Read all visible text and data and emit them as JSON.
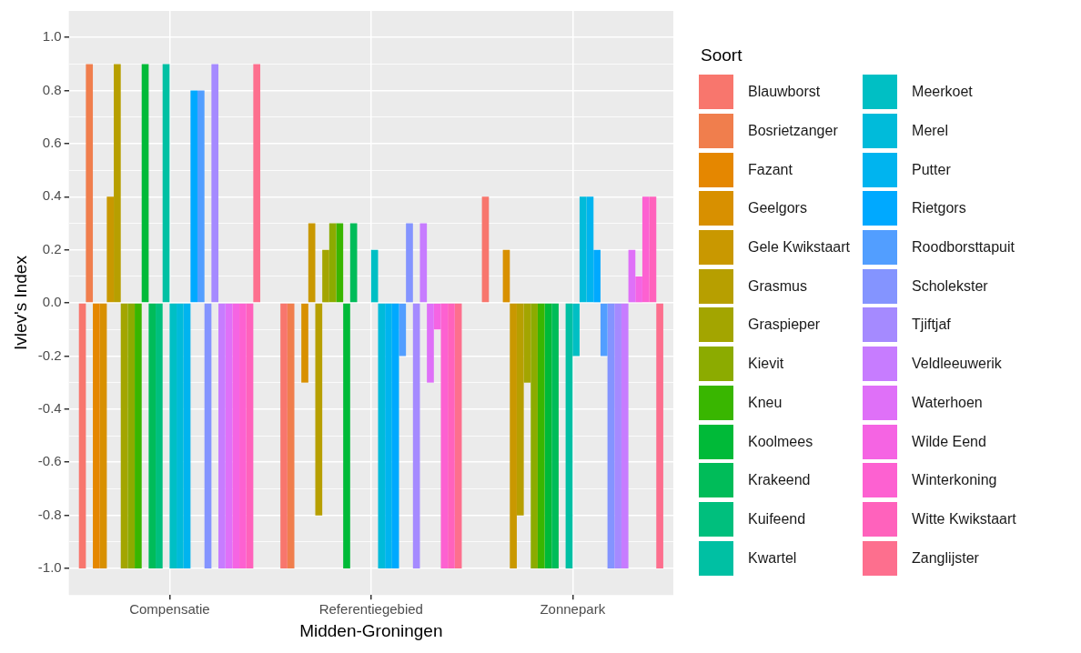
{
  "chart_data": {
    "type": "bar",
    "xlabel": "Midden-Groningen",
    "ylabel": "Ivlev's Index",
    "legend_title": "Soort",
    "legend": "right",
    "grid": true,
    "categories": [
      "Compensatie",
      "Referentiegebied",
      "Zonnepark"
    ],
    "ylim": [
      -1.1,
      1.1
    ],
    "yticks": [
      {
        "value": -1,
        "label": "-1.0"
      },
      {
        "value": -0.9,
        "label": null
      },
      {
        "value": -0.8,
        "label": "-0.8"
      },
      {
        "value": -0.7,
        "label": null
      },
      {
        "value": -0.6,
        "label": "-0.6"
      },
      {
        "value": -0.5,
        "label": null
      },
      {
        "value": -0.4,
        "label": "-0.4"
      },
      {
        "value": -0.3,
        "label": null
      },
      {
        "value": -0.2,
        "label": "-0.2"
      },
      {
        "value": -0.1,
        "label": null
      },
      {
        "value": 0,
        "label": "0.0"
      },
      {
        "value": 0.1,
        "label": null
      },
      {
        "value": 0.2,
        "label": "0.2"
      },
      {
        "value": 0.3,
        "label": null
      },
      {
        "value": 0.4,
        "label": "0.4"
      },
      {
        "value": 0.5,
        "label": null
      },
      {
        "value": 0.6,
        "label": "0.6"
      },
      {
        "value": 0.7,
        "label": null
      },
      {
        "value": 0.8,
        "label": "0.8"
      },
      {
        "value": 0.9,
        "label": null
      },
      {
        "value": 1,
        "label": "1.0"
      }
    ],
    "series": [
      {
        "name": "Blauwborst",
        "color": "#f8766d",
        "values": [
          -1,
          -1,
          0.4
        ]
      },
      {
        "name": "Bosrietzanger",
        "color": "#f07e4d",
        "values": [
          0.9,
          -1,
          null
        ]
      },
      {
        "name": "Fazant",
        "color": "#e58700",
        "values": [
          -1,
          null,
          null
        ]
      },
      {
        "name": "Geelgors",
        "color": "#d89000",
        "values": [
          -1,
          -0.3,
          0.2
        ]
      },
      {
        "name": "Gele Kwikstaart",
        "color": "#c99800",
        "values": [
          0.4,
          0.3,
          -1
        ]
      },
      {
        "name": "Grasmus",
        "color": "#b79f00",
        "values": [
          0.9,
          -0.8,
          -0.8
        ]
      },
      {
        "name": "Graspieper",
        "color": "#a3a500",
        "values": [
          -1,
          0.2,
          -0.3
        ]
      },
      {
        "name": "Kievit",
        "color": "#8cab00",
        "values": [
          -1,
          0.3,
          -1
        ]
      },
      {
        "name": "Kneu",
        "color": "#39b600",
        "values": [
          -1,
          0.3,
          -1
        ]
      },
      {
        "name": "Koolmees",
        "color": "#00ba38",
        "values": [
          0.9,
          -1,
          -1
        ]
      },
      {
        "name": "Krakeend",
        "color": "#00bc59",
        "values": [
          -1,
          0.3,
          -1
        ]
      },
      {
        "name": "Kuifeend",
        "color": "#00bf7d",
        "values": [
          -1,
          null,
          null
        ]
      },
      {
        "name": "Kwartel",
        "color": "#00c0a3",
        "values": [
          0.9,
          null,
          -1
        ]
      },
      {
        "name": "Meerkoet",
        "color": "#00bfc4",
        "values": [
          -1,
          0.2,
          -0.2
        ]
      },
      {
        "name": "Merel",
        "color": "#00bbda",
        "values": [
          -1,
          -1,
          0.4
        ]
      },
      {
        "name": "Putter",
        "color": "#00b4ef",
        "values": [
          -1,
          -1,
          0.4
        ]
      },
      {
        "name": "Rietgors",
        "color": "#00a9ff",
        "values": [
          0.8,
          -1,
          0.2
        ]
      },
      {
        "name": "Roodborsttapuit",
        "color": "#529eff",
        "values": [
          0.8,
          -0.2,
          -0.2
        ]
      },
      {
        "name": "Scholekster",
        "color": "#8494ff",
        "values": [
          -1,
          0.3,
          -1
        ]
      },
      {
        "name": "Tjiftjaf",
        "color": "#a58aff",
        "values": [
          0.9,
          -1,
          -1
        ]
      },
      {
        "name": "Veldleeuwerik",
        "color": "#c77cff",
        "values": [
          -1,
          0.3,
          -1
        ]
      },
      {
        "name": "Waterhoen",
        "color": "#df70f8",
        "values": [
          -1,
          -0.3,
          0.2
        ]
      },
      {
        "name": "Wilde Eend",
        "color": "#f564e3",
        "values": [
          -1,
          -0.1,
          0.1
        ]
      },
      {
        "name": "Winterkoning",
        "color": "#fd61d1",
        "values": [
          -1,
          -1,
          0.4
        ]
      },
      {
        "name": "Witte Kwikstaart",
        "color": "#ff62bc",
        "values": [
          -1,
          -1,
          0.4
        ]
      },
      {
        "name": "Zanglijster",
        "color": "#fd6f8e",
        "values": [
          0.9,
          -1,
          -1
        ]
      }
    ]
  }
}
